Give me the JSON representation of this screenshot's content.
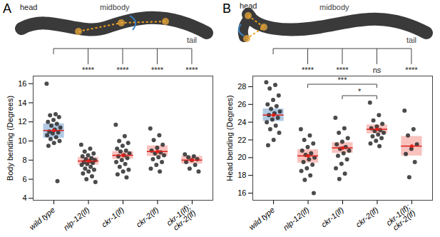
{
  "chart_data": [
    {
      "type": "box",
      "panel_label": "A",
      "diagram_labels": [
        "head",
        "midbody",
        "tail"
      ],
      "y_label": "Body bending (Degrees)",
      "categories": [
        "wild type",
        "nlp-12(lf)",
        "ckr-1(lf)",
        "ckr-2(lf)",
        "ckr-1(lf); ckr-2(lf)"
      ],
      "ylim": [
        3.8,
        16.8
      ],
      "yticks": [
        4,
        6,
        8,
        10,
        12,
        14,
        16
      ],
      "colors": [
        "#7fa7d1",
        "#f49a92",
        "#f49a92",
        "#f49a92",
        "#f49a92"
      ],
      "points": [
        [
          16.0,
          12.8,
          12.7,
          12.5,
          12.2,
          12.0,
          11.8,
          11.6,
          11.4,
          11.2,
          11.0,
          10.9,
          10.8,
          10.6,
          10.4,
          10.2,
          10.0,
          9.8,
          9.5,
          5.8
        ],
        [
          9.6,
          9.2,
          8.9,
          8.7,
          8.5,
          8.4,
          8.2,
          8.1,
          8.0,
          7.9,
          7.8,
          7.7,
          7.6,
          7.5,
          7.3,
          7.1,
          7.0,
          6.8,
          6.6,
          6.3,
          6.0,
          5.7
        ],
        [
          11.7,
          10.5,
          10.0,
          9.8,
          9.5,
          9.2,
          9.0,
          8.9,
          8.7,
          8.5,
          8.4,
          8.2,
          8.0,
          7.8,
          7.6,
          7.3,
          7.0,
          6.8,
          6.5,
          6.2
        ],
        [
          11.3,
          10.6,
          10.1,
          9.6,
          9.3,
          9.0,
          8.8,
          8.7,
          8.5,
          8.3,
          8.1,
          7.8,
          7.5,
          7.1,
          6.8
        ],
        [
          8.6,
          8.4,
          8.3,
          8.1,
          8.0,
          7.8,
          7.5,
          7.1,
          6.8
        ]
      ],
      "means": [
        11.1,
        7.9,
        8.5,
        8.9,
        8.0
      ],
      "ci_low": [
        10.3,
        7.5,
        8.1,
        8.4,
        7.6
      ],
      "ci_high": [
        11.8,
        8.3,
        8.9,
        9.5,
        8.4
      ],
      "comparisons": [
        {
          "from": "wild type",
          "to": "nlp-12(lf)",
          "label": "****"
        },
        {
          "from": "wild type",
          "to": "ckr-1(lf)",
          "label": "****"
        },
        {
          "from": "wild type",
          "to": "ckr-2(lf)",
          "label": "****"
        },
        {
          "from": "wild type",
          "to": "ckr-1(lf); ckr-2(lf)",
          "label": "****"
        }
      ]
    },
    {
      "type": "box",
      "panel_label": "B",
      "diagram_labels": [
        "head",
        "midbody",
        "tail"
      ],
      "y_label": "Head bending (Degrees)",
      "categories": [
        "wild type",
        "nlp-12(lf)",
        "ckr-1(lf)",
        "ckr-2(lf)",
        "ckr-1(lf); ckr-2(lf)"
      ],
      "ylim": [
        15.2,
        29.2
      ],
      "yticks": [
        16,
        18,
        20,
        22,
        24,
        26,
        28
      ],
      "colors": [
        "#7fa7d1",
        "#f49a92",
        "#f49a92",
        "#f49a92",
        "#f49a92"
      ],
      "points": [
        [
          28.5,
          28.2,
          27.8,
          27.0,
          26.5,
          26.0,
          25.8,
          25.5,
          25.2,
          25.0,
          24.8,
          24.5,
          24.3,
          24.0,
          23.6,
          23.2,
          22.8,
          22.0,
          21.4
        ],
        [
          23.2,
          22.5,
          22.0,
          21.6,
          21.2,
          20.8,
          20.5,
          20.3,
          20.0,
          19.8,
          19.5,
          19.2,
          18.8,
          18.5,
          18.0,
          17.5,
          16.0
        ],
        [
          24.5,
          23.3,
          22.8,
          22.2,
          21.8,
          21.5,
          21.2,
          21.0,
          20.8,
          20.5,
          20.2,
          19.8,
          19.3,
          18.8,
          18.2,
          17.6
        ],
        [
          26.2,
          24.8,
          24.2,
          23.8,
          23.5,
          23.3,
          23.1,
          23.0,
          22.8,
          22.6,
          22.4,
          22.2,
          21.9,
          21.6,
          21.3
        ],
        [
          25.3,
          23.2,
          22.5,
          21.5,
          21.0,
          20.4,
          19.5,
          17.8
        ]
      ],
      "means": [
        24.8,
        20.2,
        21.1,
        23.2,
        21.3
      ],
      "ci_low": [
        24.1,
        19.4,
        20.5,
        22.7,
        20.2
      ],
      "ci_high": [
        25.5,
        20.9,
        21.7,
        23.7,
        22.4
      ],
      "comparisons": [
        {
          "from": "wild type",
          "to": "nlp-12(lf)",
          "label": "****"
        },
        {
          "from": "wild type",
          "to": "ckr-1(lf)",
          "label": "****"
        },
        {
          "from": "wild type",
          "to": "ckr-2(lf)",
          "label": "ns"
        },
        {
          "from": "wild type",
          "to": "ckr-1(lf); ckr-2(lf)",
          "label": "****"
        },
        {
          "from": "nlp-12(lf)",
          "to": "ckr-2(lf)",
          "label": "***"
        },
        {
          "from": "ckr-1(lf)",
          "to": "ckr-2(lf)",
          "label": "*"
        }
      ]
    }
  ]
}
